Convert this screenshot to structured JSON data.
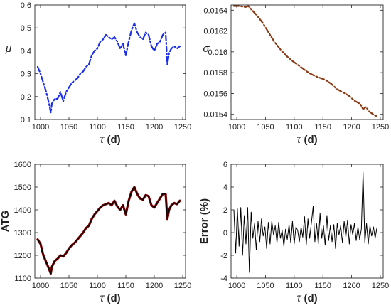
{
  "figure": {
    "panels_count": 4
  },
  "chart_data": [
    {
      "type": "line",
      "panel": "top-left",
      "xlabel": "τ (d)",
      "ylabel": "μ",
      "xlim": [
        990,
        1255
      ],
      "ylim": [
        0.1,
        0.6
      ],
      "xticks": [
        1000,
        1050,
        1100,
        1150,
        1200,
        1250
      ],
      "yticks": [
        0.1,
        0.2,
        0.3,
        0.4,
        0.5,
        0.6
      ],
      "grid": false,
      "series": [
        {
          "color": "#1a2ee6",
          "dash": "dash-dot",
          "x": [
            995,
            1000,
            1005,
            1010,
            1015,
            1018,
            1020,
            1025,
            1030,
            1035,
            1040,
            1045,
            1050,
            1055,
            1060,
            1065,
            1070,
            1075,
            1080,
            1085,
            1090,
            1095,
            1100,
            1105,
            1110,
            1115,
            1120,
            1125,
            1130,
            1135,
            1140,
            1145,
            1150,
            1155,
            1160,
            1165,
            1170,
            1175,
            1180,
            1185,
            1190,
            1195,
            1200,
            1205,
            1210,
            1215,
            1220,
            1223,
            1226,
            1230,
            1235,
            1240,
            1245
          ],
          "y": [
            0.33,
            0.3,
            0.26,
            0.22,
            0.17,
            0.13,
            0.17,
            0.19,
            0.19,
            0.22,
            0.18,
            0.22,
            0.24,
            0.26,
            0.27,
            0.28,
            0.3,
            0.31,
            0.33,
            0.34,
            0.38,
            0.4,
            0.41,
            0.44,
            0.45,
            0.47,
            0.46,
            0.45,
            0.46,
            0.44,
            0.41,
            0.43,
            0.38,
            0.44,
            0.49,
            0.52,
            0.48,
            0.46,
            0.45,
            0.48,
            0.47,
            0.42,
            0.4,
            0.43,
            0.44,
            0.47,
            0.48,
            0.34,
            0.39,
            0.41,
            0.42,
            0.41,
            0.42
          ]
        }
      ]
    },
    {
      "type": "line",
      "panel": "top-right",
      "xlabel": "τ (d)",
      "ylabel": "σ",
      "xlim": [
        990,
        1255
      ],
      "ylim": [
        0.01535,
        0.01645
      ],
      "xticks": [
        1000,
        1050,
        1100,
        1150,
        1200,
        1250
      ],
      "yticks": [
        0.0154,
        0.0156,
        0.0158,
        0.016,
        0.0162,
        0.0164
      ],
      "grid": false,
      "series": [
        {
          "color": "#8b3a12",
          "dash": "dash-dot",
          "x": [
            995,
            1005,
            1015,
            1020,
            1025,
            1035,
            1045,
            1055,
            1065,
            1075,
            1085,
            1095,
            1105,
            1115,
            1125,
            1135,
            1145,
            1155,
            1165,
            1175,
            1185,
            1195,
            1205,
            1215,
            1220,
            1225,
            1230,
            1235,
            1240,
            1245
          ],
          "y": [
            0.01644,
            0.01644,
            0.01643,
            0.01644,
            0.01641,
            0.01635,
            0.01628,
            0.01619,
            0.0161,
            0.01603,
            0.01597,
            0.01592,
            0.01588,
            0.01584,
            0.0158,
            0.01577,
            0.01575,
            0.01573,
            0.01569,
            0.01564,
            0.01561,
            0.01558,
            0.01553,
            0.0155,
            0.01545,
            0.01547,
            0.01543,
            0.01541,
            0.01539,
            0.01538
          ]
        }
      ]
    },
    {
      "type": "line",
      "panel": "bottom-left",
      "xlabel": "τ (d)",
      "ylabel": "ATG",
      "xlim": [
        990,
        1255
      ],
      "ylim": [
        1100,
        1600
      ],
      "xticks": [
        1000,
        1050,
        1100,
        1150,
        1200,
        1250
      ],
      "yticks": [
        1100,
        1200,
        1300,
        1400,
        1500,
        1600
      ],
      "grid": false,
      "series": [
        {
          "color": "#7a0000",
          "width": 3.2,
          "x": [
            995,
            1000,
            1005,
            1010,
            1015,
            1018,
            1020,
            1025,
            1030,
            1035,
            1040,
            1045,
            1050,
            1055,
            1060,
            1065,
            1070,
            1075,
            1080,
            1085,
            1090,
            1095,
            1100,
            1105,
            1110,
            1115,
            1120,
            1125,
            1130,
            1135,
            1140,
            1145,
            1150,
            1155,
            1160,
            1165,
            1170,
            1175,
            1180,
            1185,
            1190,
            1195,
            1200,
            1205,
            1210,
            1215,
            1220,
            1223,
            1226,
            1230,
            1235,
            1240,
            1245
          ],
          "y": [
            1270,
            1250,
            1200,
            1170,
            1140,
            1120,
            1150,
            1175,
            1185,
            1200,
            1195,
            1210,
            1230,
            1245,
            1255,
            1270,
            1285,
            1300,
            1320,
            1330,
            1360,
            1380,
            1395,
            1410,
            1420,
            1425,
            1430,
            1420,
            1440,
            1415,
            1400,
            1420,
            1380,
            1440,
            1480,
            1500,
            1470,
            1450,
            1445,
            1465,
            1460,
            1420,
            1410,
            1430,
            1450,
            1470,
            1470,
            1360,
            1400,
            1420,
            1430,
            1425,
            1440
          ]
        },
        {
          "color": "#000000",
          "width": 1.1,
          "x": [
            995,
            1000,
            1005,
            1010,
            1015,
            1018,
            1020,
            1025,
            1030,
            1035,
            1040,
            1045,
            1050,
            1055,
            1060,
            1065,
            1070,
            1075,
            1080,
            1085,
            1090,
            1095,
            1100,
            1105,
            1110,
            1115,
            1120,
            1125,
            1130,
            1135,
            1140,
            1145,
            1150,
            1155,
            1160,
            1165,
            1170,
            1175,
            1180,
            1185,
            1190,
            1195,
            1200,
            1205,
            1210,
            1215,
            1220,
            1223,
            1226,
            1230,
            1235,
            1240,
            1245
          ],
          "y": [
            1270,
            1250,
            1200,
            1170,
            1140,
            1120,
            1150,
            1175,
            1185,
            1200,
            1195,
            1210,
            1230,
            1245,
            1255,
            1270,
            1285,
            1300,
            1320,
            1330,
            1360,
            1380,
            1395,
            1410,
            1420,
            1425,
            1430,
            1420,
            1440,
            1415,
            1400,
            1420,
            1380,
            1440,
            1480,
            1500,
            1470,
            1450,
            1445,
            1465,
            1460,
            1420,
            1410,
            1430,
            1450,
            1470,
            1470,
            1360,
            1400,
            1420,
            1430,
            1425,
            1440
          ]
        }
      ]
    },
    {
      "type": "line",
      "panel": "bottom-right",
      "xlabel": "τ (d)",
      "ylabel": "Error (%)",
      "xlim": [
        990,
        1255
      ],
      "ylim": [
        -4,
        6
      ],
      "xticks": [
        1000,
        1050,
        1100,
        1150,
        1200,
        1250
      ],
      "yticks": [
        -4,
        -2,
        0,
        2,
        4,
        6
      ],
      "grid": false,
      "series": [
        {
          "color": "#000000",
          "width": 1.0,
          "x": [
            995,
            998,
            1001,
            1004,
            1007,
            1010,
            1013,
            1016,
            1019,
            1022,
            1025,
            1028,
            1031,
            1034,
            1037,
            1040,
            1043,
            1046,
            1049,
            1052,
            1055,
            1058,
            1061,
            1064,
            1067,
            1070,
            1073,
            1076,
            1079,
            1082,
            1085,
            1088,
            1091,
            1094,
            1097,
            1100,
            1103,
            1106,
            1109,
            1112,
            1115,
            1118,
            1121,
            1124,
            1127,
            1130,
            1133,
            1136,
            1139,
            1142,
            1145,
            1148,
            1151,
            1154,
            1157,
            1160,
            1163,
            1166,
            1169,
            1172,
            1175,
            1178,
            1181,
            1184,
            1187,
            1190,
            1193,
            1196,
            1199,
            1202,
            1205,
            1208,
            1211,
            1214,
            1217,
            1220,
            1223,
            1226,
            1229,
            1232,
            1235,
            1238,
            1241,
            1244
          ],
          "y": [
            2.0,
            -1.8,
            2.1,
            -1.2,
            2.2,
            -2.0,
            1.5,
            -1.0,
            2.2,
            -3.5,
            1.8,
            -0.5,
            0.8,
            -1.5,
            1.0,
            -0.8,
            1.2,
            -0.3,
            0.5,
            -1.4,
            0.9,
            -1.0,
            1.0,
            -0.2,
            0.6,
            -0.9,
            0.9,
            -0.5,
            0.2,
            -1.2,
            0.3,
            -0.6,
            0.7,
            -0.9,
            1.0,
            -1.0,
            0.5,
            0.2,
            -0.8,
            0.5,
            -0.4,
            1.4,
            -1.1,
            1.2,
            -0.5,
            0.9,
            2.3,
            -0.8,
            0.8,
            -1.0,
            1.7,
            -0.5,
            0.6,
            -1.1,
            1.5,
            -0.7,
            0.6,
            -0.8,
            0.7,
            -1.4,
            0.8,
            -0.2,
            0.6,
            -0.9,
            1.0,
            -0.4,
            1.1,
            -1.0,
            0.7,
            -0.2,
            0.8,
            -0.7,
            0.5,
            -0.6,
            0.3,
            5.3,
            -0.9,
            0.8,
            -1.0,
            0.6,
            -0.3,
            0.5,
            -0.5,
            0.4
          ]
        }
      ]
    }
  ]
}
